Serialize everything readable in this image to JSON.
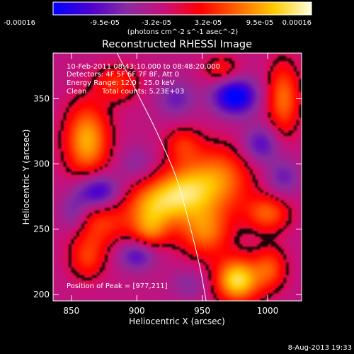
{
  "colorbar": {
    "tick_labels": [
      "-0.00016",
      "-9.5e-05",
      "-3.2e-05",
      "3.2e-05",
      "9.5e-05",
      "0.00016"
    ],
    "unit_label": "(photons cm^-2 s^-1 asec^-2)",
    "colors": [
      "#0000ff",
      "#4b00d0",
      "#8a2ba0",
      "#c8107a",
      "#ff0000",
      "#ff6600",
      "#ffcc00",
      "#ffffe0"
    ]
  },
  "header": {
    "time_range": "10-Feb-2011 08:43:10.000 to 08:48:20.000",
    "detectors": "Detectors: 4F 5F 6F 7F 8F, Att 0",
    "energy_range": "Energy Range: 12.0 - 25.0 keV",
    "algorithm": "Clean",
    "total_counts": "Total counts: 5.23E+03"
  },
  "peak_position": "Position of Peak = [977,211]",
  "footer": {
    "date": "8-Aug-2013 19:33"
  },
  "chart_data": {
    "type": "heatmap",
    "title": "Reconstructed RHESSI Image",
    "xlabel": "Heliocentric X (arcsec)",
    "ylabel": "Heliocentric Y (arcsec)",
    "xlim": [
      836,
      1026
    ],
    "ylim": [
      195,
      385
    ],
    "x_ticks": [
      850,
      900,
      950,
      1000
    ],
    "y_ticks": [
      200,
      250,
      300,
      350
    ],
    "clim": [
      -0.00016,
      0.00016
    ],
    "peak": [
      977,
      211
    ],
    "sources": [
      {
        "x": 862,
        "y": 318,
        "sx": 12,
        "sy": 20,
        "amp": 0.00013
      },
      {
        "x": 872,
        "y": 258,
        "sx": 15,
        "sy": 15,
        "amp": 8e-05
      },
      {
        "x": 862,
        "y": 228,
        "sx": 10,
        "sy": 12,
        "amp": 7e-05
      },
      {
        "x": 912,
        "y": 268,
        "sx": 15,
        "sy": 14,
        "amp": 0.00011
      },
      {
        "x": 910,
        "y": 248,
        "sx": 10,
        "sy": 10,
        "amp": 7e-05
      },
      {
        "x": 935,
        "y": 278,
        "sx": 15,
        "sy": 14,
        "amp": 0.00011
      },
      {
        "x": 962,
        "y": 288,
        "sx": 18,
        "sy": 18,
        "amp": 0.00011
      },
      {
        "x": 952,
        "y": 248,
        "sx": 14,
        "sy": 14,
        "amp": 0.0001
      },
      {
        "x": 977,
        "y": 211,
        "sx": 12,
        "sy": 12,
        "amp": 0.00016
      },
      {
        "x": 1000,
        "y": 262,
        "sx": 12,
        "sy": 10,
        "amp": 9e-05
      },
      {
        "x": 1012,
        "y": 350,
        "sx": 9,
        "sy": 20,
        "amp": 0.0001
      },
      {
        "x": 1002,
        "y": 220,
        "sx": 9,
        "sy": 12,
        "amp": 8e-05
      },
      {
        "x": 935,
        "y": 315,
        "sx": 10,
        "sy": 10,
        "amp": 6e-05
      },
      {
        "x": 885,
        "y": 362,
        "sx": 12,
        "sy": 10,
        "amp": 7e-05
      },
      {
        "x": 965,
        "y": 372,
        "sx": 10,
        "sy": 8,
        "amp": 6e-05
      },
      {
        "x": 975,
        "y": 352,
        "sx": 12,
        "sy": 10,
        "amp": -0.00014
      },
      {
        "x": 870,
        "y": 278,
        "sx": 12,
        "sy": 10,
        "amp": -0.00013
      },
      {
        "x": 995,
        "y": 315,
        "sx": 10,
        "sy": 10,
        "amp": -8e-05
      },
      {
        "x": 900,
        "y": 230,
        "sx": 10,
        "sy": 8,
        "amp": -8e-05
      },
      {
        "x": 930,
        "y": 350,
        "sx": 10,
        "sy": 10,
        "amp": -6e-05
      },
      {
        "x": 852,
        "y": 262,
        "sx": 8,
        "sy": 10,
        "amp": -6e-05
      },
      {
        "x": 1012,
        "y": 290,
        "sx": 9,
        "sy": 10,
        "amp": -6e-05
      },
      {
        "x": 900,
        "y": 300,
        "sx": 10,
        "sy": 10,
        "amp": -4e-05
      },
      {
        "x": 940,
        "y": 208,
        "sx": 10,
        "sy": 8,
        "amp": -4e-05
      }
    ],
    "limb": {
      "points": [
        [
          885,
          385
        ],
        [
          900,
          355
        ],
        [
          915,
          325
        ],
        [
          930,
          290
        ],
        [
          940,
          255
        ],
        [
          948,
          222
        ],
        [
          953,
          195
        ]
      ]
    }
  }
}
